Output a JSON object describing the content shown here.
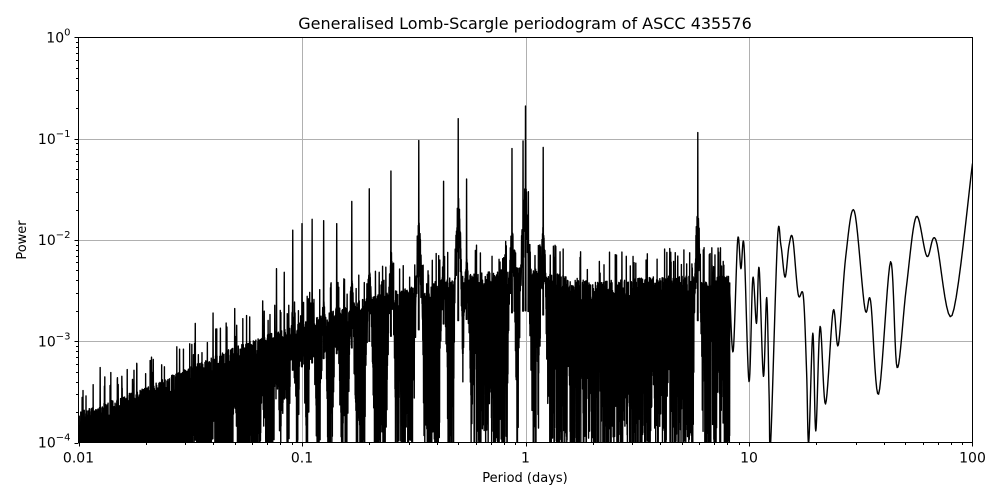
{
  "chart_data": {
    "type": "line",
    "title": "Generalised Lomb-Scargle periodogram of ASCC 435576",
    "xlabel": "Period (days)",
    "ylabel": "Power",
    "xscale": "log",
    "yscale": "log",
    "xlim": [
      0.01,
      100
    ],
    "ylim": [
      0.0001,
      1
    ],
    "grid": true,
    "legend": null,
    "x_ticks": [
      {
        "value": 0.01,
        "label": "0.01"
      },
      {
        "value": 0.1,
        "label": "0.1"
      },
      {
        "value": 1,
        "label": "1"
      },
      {
        "value": 10,
        "label": "10"
      },
      {
        "value": 100,
        "label": "100"
      }
    ],
    "y_ticks": [
      {
        "value": 0.0001,
        "base": "10",
        "exp": "−4"
      },
      {
        "value": 0.001,
        "base": "10",
        "exp": "−3"
      },
      {
        "value": 0.01,
        "base": "10",
        "exp": "−2"
      },
      {
        "value": 0.1,
        "base": "10",
        "exp": "−1"
      },
      {
        "value": 1,
        "base": "10",
        "exp": "0"
      }
    ],
    "line_color": "#000000",
    "grid_color": "#b0b0b0",
    "noise_envelope": [
      {
        "period": 0.01,
        "power": 0.00018
      },
      {
        "period": 0.02,
        "power": 0.00032
      },
      {
        "period": 0.05,
        "power": 0.0008
      },
      {
        "period": 0.1,
        "power": 0.0014
      },
      {
        "period": 0.2,
        "power": 0.0025
      },
      {
        "period": 0.5,
        "power": 0.004
      },
      {
        "period": 1.0,
        "power": 0.005
      },
      {
        "period": 2.0,
        "power": 0.0035
      },
      {
        "period": 4.0,
        "power": 0.004
      },
      {
        "period": 8.0,
        "power": 0.004
      }
    ],
    "prominent_peaks": [
      {
        "period": 0.0125,
        "power": 0.00055
      },
      {
        "period": 0.0333,
        "power": 0.0015
      },
      {
        "period": 0.04,
        "power": 0.0019
      },
      {
        "period": 0.05,
        "power": 0.0021
      },
      {
        "period": 0.0667,
        "power": 0.0025
      },
      {
        "period": 0.0769,
        "power": 0.0052
      },
      {
        "period": 0.0833,
        "power": 0.0048
      },
      {
        "period": 0.0909,
        "power": 0.0125
      },
      {
        "period": 0.1,
        "power": 0.0145
      },
      {
        "period": 0.111,
        "power": 0.016
      },
      {
        "period": 0.125,
        "power": 0.0155
      },
      {
        "period": 0.143,
        "power": 0.0145
      },
      {
        "period": 0.167,
        "power": 0.024
      },
      {
        "period": 0.2,
        "power": 0.032
      },
      {
        "period": 0.25,
        "power": 0.048
      },
      {
        "period": 0.333,
        "power": 0.096
      },
      {
        "period": 0.43,
        "power": 0.038
      },
      {
        "period": 0.5,
        "power": 0.158
      },
      {
        "period": 0.545,
        "power": 0.04
      },
      {
        "period": 0.87,
        "power": 0.08
      },
      {
        "period": 0.975,
        "power": 0.095
      },
      {
        "period": 1.0,
        "power": 0.21
      },
      {
        "period": 1.03,
        "power": 0.03
      },
      {
        "period": 1.2,
        "power": 0.082
      },
      {
        "period": 5.9,
        "power": 0.115
      }
    ],
    "long_period_curve": [
      {
        "period": 8.2,
        "power": 0.003
      },
      {
        "period": 8.5,
        "power": 0.0008
      },
      {
        "period": 8.9,
        "power": 0.0101
      },
      {
        "period": 9.2,
        "power": 0.0052
      },
      {
        "period": 9.5,
        "power": 0.0088
      },
      {
        "period": 10.0,
        "power": 0.0004
      },
      {
        "period": 10.4,
        "power": 0.0042
      },
      {
        "period": 10.8,
        "power": 0.0015
      },
      {
        "period": 11.1,
        "power": 0.0053
      },
      {
        "period": 11.6,
        "power": 0.00045
      },
      {
        "period": 12.0,
        "power": 0.0027
      },
      {
        "period": 12.3,
        "power": 0.0003
      },
      {
        "period": 12.5,
        "power": 0.0001
      },
      {
        "period": 13.4,
        "power": 0.0098
      },
      {
        "period": 13.9,
        "power": 0.0088
      },
      {
        "period": 14.5,
        "power": 0.0043
      },
      {
        "period": 15.1,
        "power": 0.0088
      },
      {
        "period": 15.7,
        "power": 0.0103
      },
      {
        "period": 16.6,
        "power": 0.0029
      },
      {
        "period": 17.5,
        "power": 0.0028
      },
      {
        "period": 18.1,
        "power": 0.0005
      },
      {
        "period": 18.5,
        "power": 0.0001
      },
      {
        "period": 19.3,
        "power": 0.0012
      },
      {
        "period": 19.9,
        "power": 0.00013
      },
      {
        "period": 20.8,
        "power": 0.0014
      },
      {
        "period": 22.0,
        "power": 0.00024
      },
      {
        "period": 23.8,
        "power": 0.002
      },
      {
        "period": 25.1,
        "power": 0.00092
      },
      {
        "period": 27.1,
        "power": 0.0069
      },
      {
        "period": 29.6,
        "power": 0.0193
      },
      {
        "period": 33.0,
        "power": 0.0021
      },
      {
        "period": 35.0,
        "power": 0.0025
      },
      {
        "period": 38.0,
        "power": 0.0003
      },
      {
        "period": 43.0,
        "power": 0.0061
      },
      {
        "period": 46.0,
        "power": 0.00055
      },
      {
        "period": 50.5,
        "power": 0.0033
      },
      {
        "period": 56.0,
        "power": 0.017
      },
      {
        "period": 62.5,
        "power": 0.0069
      },
      {
        "period": 68.5,
        "power": 0.0101
      },
      {
        "period": 81.0,
        "power": 0.0018
      },
      {
        "period": 100.0,
        "power": 0.057
      }
    ]
  }
}
